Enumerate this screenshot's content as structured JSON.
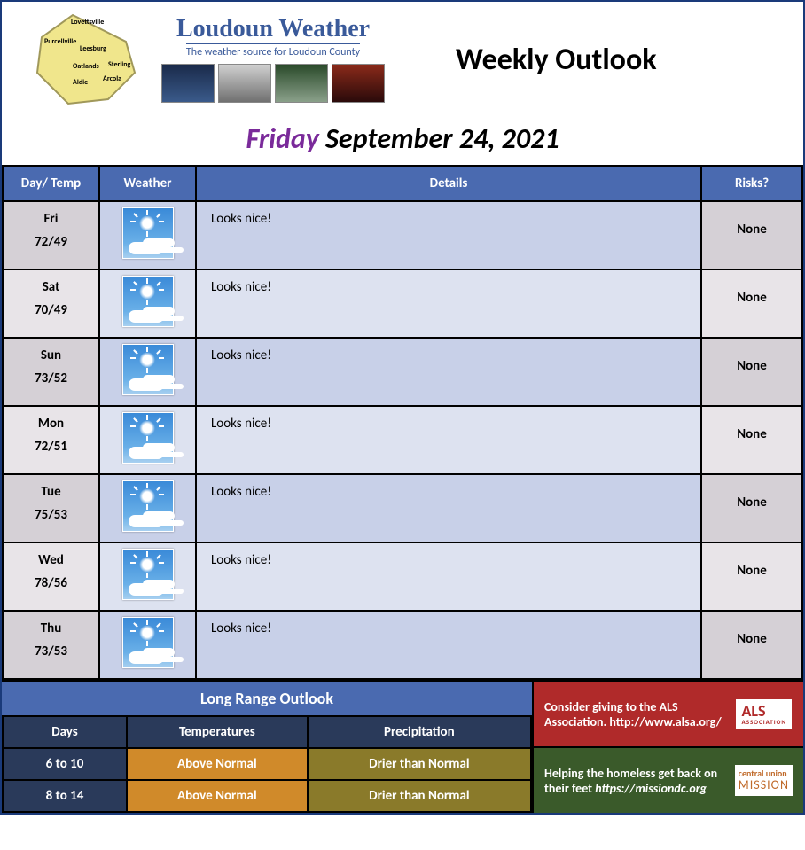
{
  "header": {
    "site_title": "Loudoun Weather",
    "site_tagline": "The weather source for Loudoun County",
    "page_title": "Weekly Outlook",
    "map_towns": [
      "Lovettsville",
      "Purcellville",
      "Leesburg",
      "Oatlands",
      "Sterling",
      "Aldie",
      "Arcola"
    ],
    "map_fill": "#f0e68c",
    "map_stroke": "#a0985a",
    "thumb_gradients": [
      [
        "#1a2a4a",
        "#3a5a8a"
      ],
      [
        "#d0d0d0",
        "#707070"
      ],
      [
        "#2a4a2a",
        "#8aa08a"
      ],
      [
        "#8a2a1a",
        "#2a0a0a"
      ]
    ]
  },
  "date": {
    "day_name": "Friday",
    "rest": " September 24, 2021"
  },
  "columns": {
    "day": "Day/ Temp",
    "weather": "Weather",
    "details": "Details",
    "risks": "Risks?"
  },
  "forecast": [
    {
      "day": "Fri",
      "hi": 72,
      "lo": 49,
      "details": "Looks nice!",
      "risk": "None"
    },
    {
      "day": "Sat",
      "hi": 70,
      "lo": 49,
      "details": "Looks nice!",
      "risk": "None"
    },
    {
      "day": "Sun",
      "hi": 73,
      "lo": 52,
      "details": "Looks nice!",
      "risk": "None"
    },
    {
      "day": "Mon",
      "hi": 72,
      "lo": 51,
      "details": "Looks nice!",
      "risk": "None"
    },
    {
      "day": "Tue",
      "hi": 75,
      "lo": 53,
      "details": "Looks nice!",
      "risk": "None"
    },
    {
      "day": "Wed",
      "hi": 78,
      "lo": 56,
      "details": "Looks nice!",
      "risk": "None"
    },
    {
      "day": "Thu",
      "hi": 73,
      "lo": 53,
      "details": "Looks nice!",
      "risk": "None"
    }
  ],
  "row_colors": {
    "a": {
      "side": "#d5d0d6",
      "mid": "#c8d0e8"
    },
    "b": {
      "side": "#e8e4e8",
      "mid": "#dde2f0"
    }
  },
  "longrange": {
    "title": "Long Range Outlook",
    "headers": {
      "days": "Days",
      "temp": "Temperatures",
      "precip": "Precipitation"
    },
    "rows": [
      {
        "days": "6 to 10",
        "temp": "Above Normal",
        "precip": "Drier than Normal"
      },
      {
        "days": "8 to 14",
        "temp": "Above Normal",
        "precip": "Drier than Normal"
      }
    ],
    "colors": {
      "title_bg": "#4a6ab0",
      "header_bg": "#2a3a5a",
      "days_bg": "#2a3a5a",
      "temp_bg": "#d08a2a",
      "precip_bg": "#8a7a2a"
    }
  },
  "charity": {
    "als_text": "Consider giving to the ALS Association. http://www.alsa.org/",
    "als_logo_main": "ALS",
    "als_logo_sub": "ASSOCIATION",
    "als_bg": "#b02a2a",
    "mission_text": "Helping the homeless get back on their feet ",
    "mission_link": "https://missiondc.org",
    "mission_logo_top": "central union",
    "mission_logo_bottom": "MISSION",
    "mission_bg": "#3a5a2a"
  }
}
